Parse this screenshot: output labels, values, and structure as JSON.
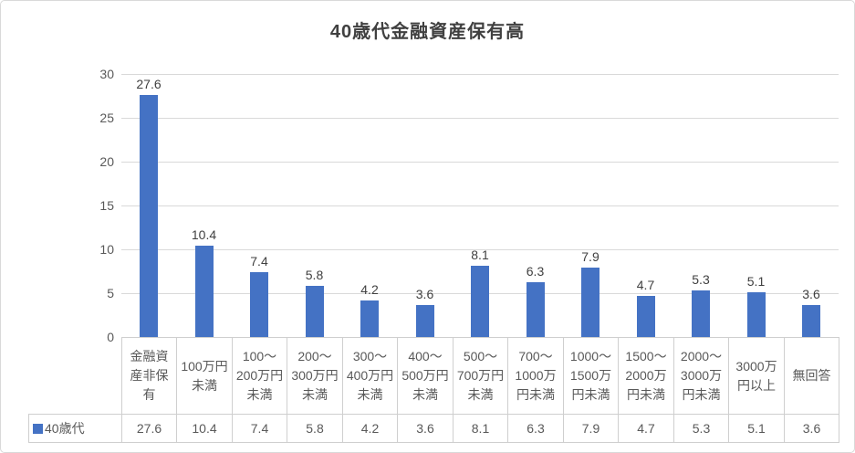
{
  "chart_data": {
    "type": "bar",
    "title": "40歳代金融資産保有高",
    "categories": [
      "金融資産非保有",
      "100万円未満",
      "100〜200万円未満",
      "200〜300万円未満",
      "300〜400万円未満",
      "400〜500万円未満",
      "500〜700万円未満",
      "700〜1000万円未満",
      "1000〜1500万円未満",
      "1500〜2000万円未満",
      "2000〜3000万円未満",
      "3000万円以上",
      "無回答"
    ],
    "categories_display": [
      "金融資\n産非保\n有",
      "100万円\n未満",
      "100〜\n200万円\n未満",
      "200〜\n300万円\n未満",
      "300〜\n400万円\n未満",
      "400〜\n500万円\n未満",
      "500〜\n700万円\n未満",
      "700〜\n1000万\n円未満",
      "1000〜\n1500万\n円未満",
      "1500〜\n2000万\n円未満",
      "2000〜\n3000万\n円未満",
      "3000万\n円以上",
      "無回答"
    ],
    "series": [
      {
        "name": "40歳代",
        "values": [
          27.6,
          10.4,
          7.4,
          5.8,
          4.2,
          3.6,
          8.1,
          6.3,
          7.9,
          4.7,
          5.3,
          5.1,
          3.6
        ]
      }
    ],
    "value_labels": [
      "27.6",
      "10.4",
      "7.4",
      "5.8",
      "4.2",
      "3.6",
      "8.1",
      "6.3",
      "7.9",
      "4.7",
      "5.3",
      "5.1",
      "3.6"
    ],
    "xlabel": "",
    "ylabel": "",
    "ylim": [
      0,
      30
    ],
    "yticks": [
      0,
      5,
      10,
      15,
      20,
      25,
      30
    ],
    "grid": true,
    "data_labels": true,
    "data_table": true,
    "legend_position": "data-table-left",
    "colors": {
      "bar": "#4472c4",
      "gridline": "#d9d9d9",
      "table_border": "#cfcfcf",
      "title_text": "#404040",
      "axis_text": "#595959",
      "data_label_text": "#404040"
    }
  }
}
